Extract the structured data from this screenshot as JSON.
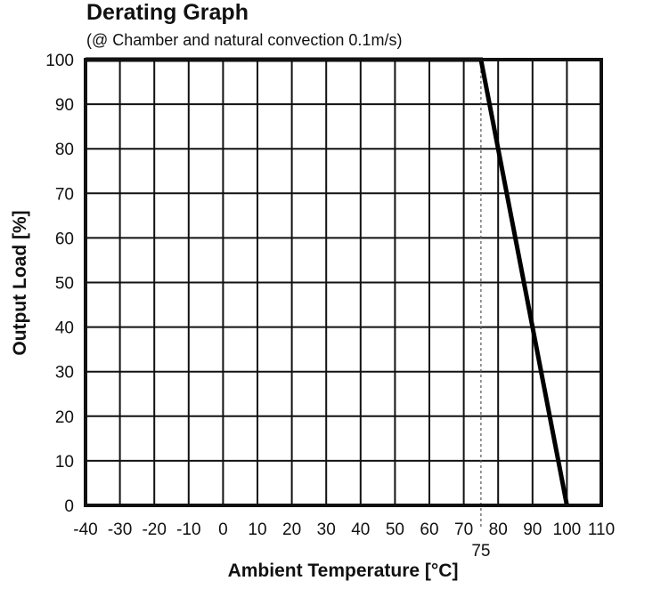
{
  "chart_data": {
    "type": "line",
    "title": "Derating Graph",
    "subtitle": "(@ Chamber and natural convection 0.1m/s)",
    "xlabel": "Ambient Temperature [°C]",
    "ylabel": "Output Load [%]",
    "xlim": [
      -40,
      110
    ],
    "ylim": [
      0,
      100
    ],
    "xticks": [
      -40,
      -30,
      -20,
      -10,
      0,
      10,
      20,
      30,
      40,
      50,
      60,
      70,
      80,
      90,
      100,
      110
    ],
    "yticks": [
      0,
      10,
      20,
      30,
      40,
      50,
      60,
      70,
      80,
      90,
      100
    ],
    "grid": true,
    "annotation": {
      "x": 75,
      "label": "75"
    },
    "series": [
      {
        "x": [
          -40,
          75,
          100
        ],
        "y": [
          100,
          100,
          0
        ]
      }
    ]
  }
}
